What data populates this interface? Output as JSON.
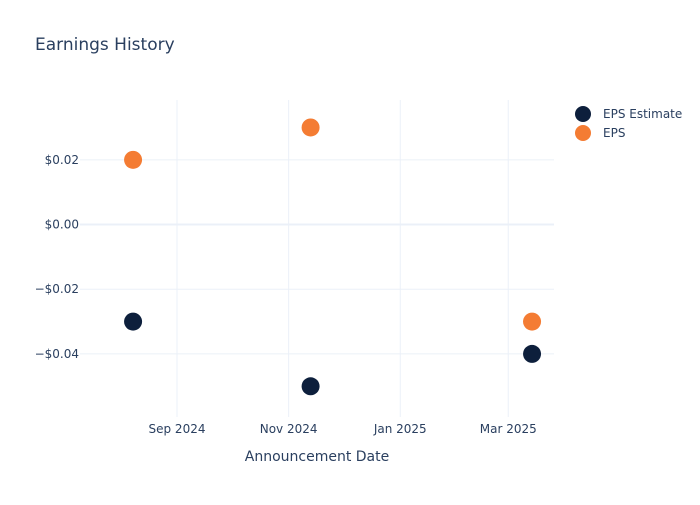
{
  "chart_data": {
    "type": "scatter",
    "title": "Earnings History",
    "xlabel": "Announcement Date",
    "ylabel": "",
    "x_tick_labels": [
      {
        "label": "Sep 2024",
        "date": "2024-09-01"
      },
      {
        "label": "Nov 2024",
        "date": "2024-11-01"
      },
      {
        "label": "Jan 2025",
        "date": "2025-01-01"
      },
      {
        "label": "Mar 2025",
        "date": "2025-03-01"
      }
    ],
    "y_tick_labels": [
      {
        "label": "$0.02",
        "value": 0.02
      },
      {
        "label": "$0.00",
        "value": 0.0
      },
      {
        "label": "−$0.02",
        "value": -0.02
      },
      {
        "label": "−$0.04",
        "value": -0.04
      }
    ],
    "xlim": [
      "2024-07-10",
      "2025-03-26"
    ],
    "ylim": [
      -0.0595,
      0.0385
    ],
    "grid": true,
    "legend_position": "top-right",
    "series": [
      {
        "name": "EPS Estimate",
        "color": "#0d1f3c",
        "points": [
          {
            "x": "2024-08-08",
            "y": -0.03
          },
          {
            "x": "2024-11-13",
            "y": -0.05
          },
          {
            "x": "2025-03-14",
            "y": -0.04
          }
        ]
      },
      {
        "name": "EPS",
        "color": "#f47c33",
        "points": [
          {
            "x": "2024-08-08",
            "y": 0.02
          },
          {
            "x": "2024-11-13",
            "y": 0.03
          },
          {
            "x": "2025-03-14",
            "y": -0.03
          }
        ]
      }
    ]
  }
}
